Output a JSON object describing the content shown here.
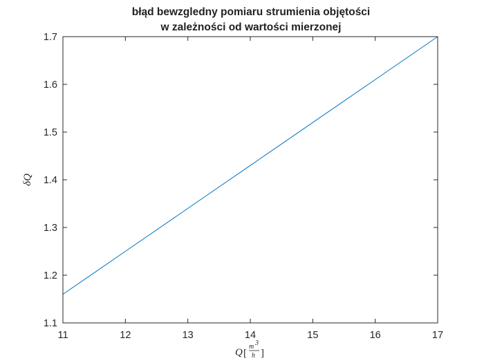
{
  "chart_data": {
    "type": "line",
    "title_lines": [
      "błąd bewzgledny pomiaru strumienia objętości",
      "w zależności od wartości mierzonej"
    ],
    "xlabel": {
      "symbol": "Q",
      "unit_numerator": "m",
      "unit_exponent": "3",
      "unit_denominator": "h"
    },
    "ylabel": {
      "delta": "δ",
      "symbol": "Q"
    },
    "xlim": [
      11,
      17
    ],
    "ylim": [
      1.1,
      1.7
    ],
    "xticks": [
      "11",
      "12",
      "13",
      "14",
      "15",
      "16",
      "17"
    ],
    "yticks": [
      "1.1",
      "1.2",
      "1.3",
      "1.4",
      "1.5",
      "1.6",
      "1.7"
    ],
    "grid": false,
    "series": [
      {
        "x": [
          11,
          12,
          13,
          14,
          15,
          16,
          17
        ],
        "y": [
          1.16,
          1.25,
          1.34,
          1.43,
          1.52,
          1.61,
          1.7
        ],
        "color": "#0072BD"
      }
    ]
  }
}
